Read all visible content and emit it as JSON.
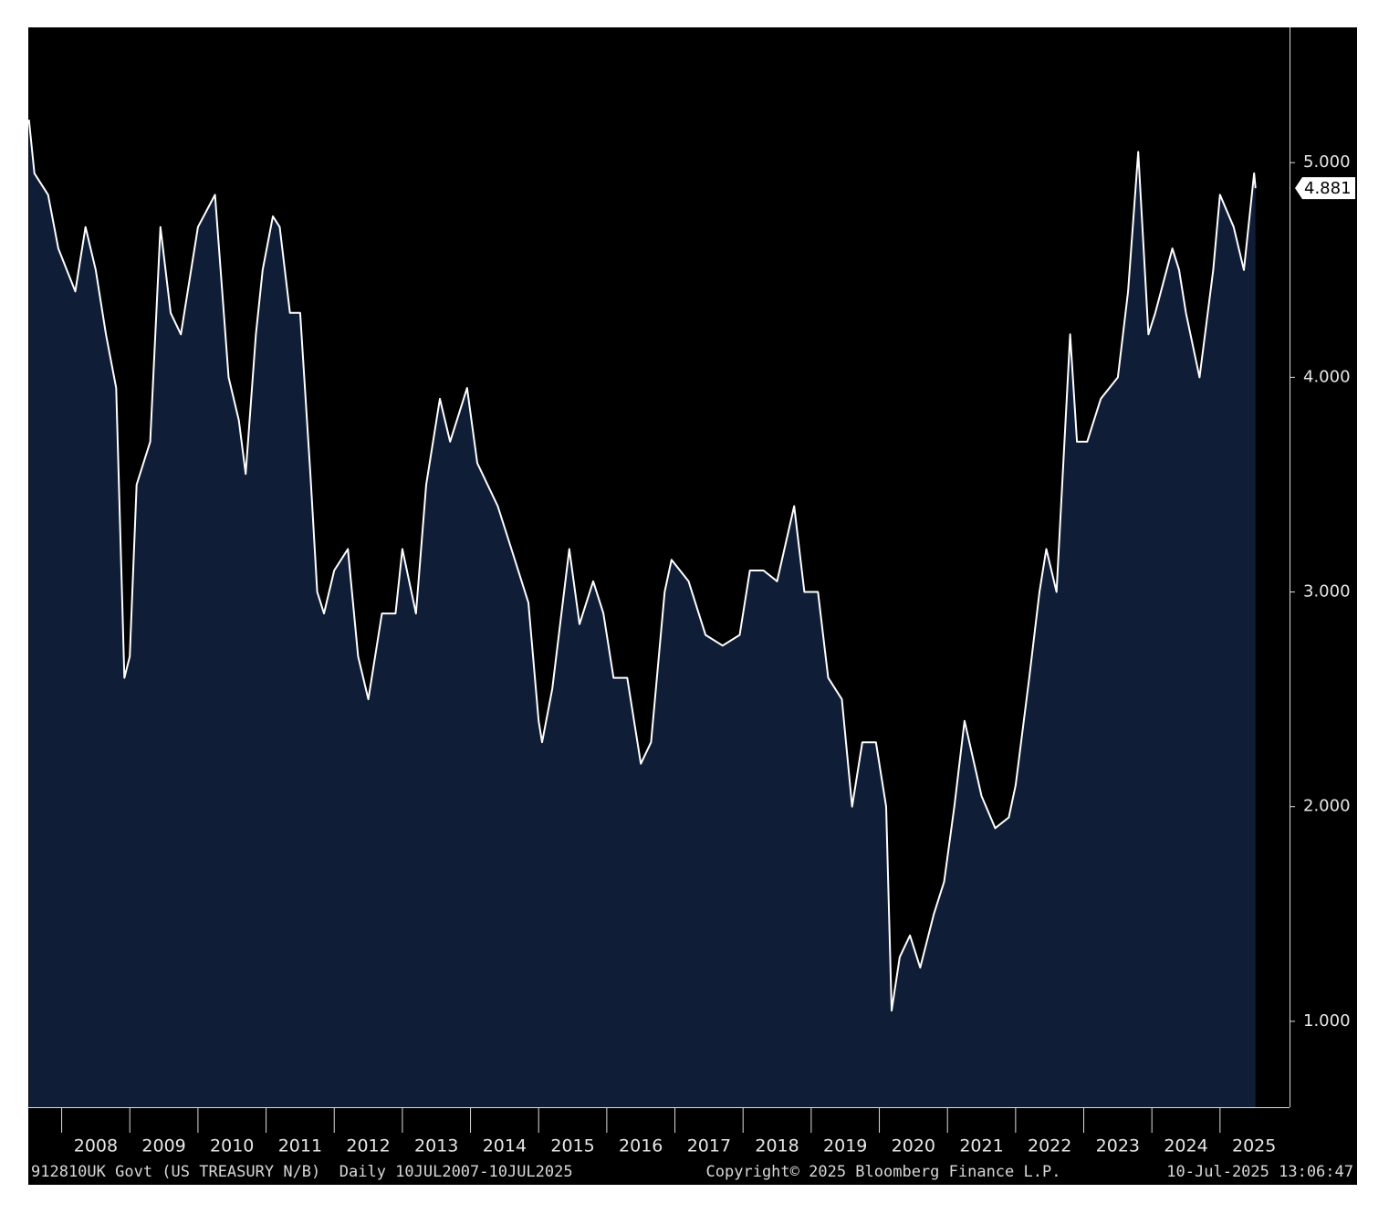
{
  "chart_data": {
    "type": "area",
    "x": [
      2007.52,
      2007.6,
      2007.8,
      2007.95,
      2008.2,
      2008.35,
      2008.5,
      2008.65,
      2008.8,
      2008.92,
      2009.0,
      2009.1,
      2009.3,
      2009.45,
      2009.6,
      2009.75,
      2009.9,
      2010.0,
      2010.25,
      2010.45,
      2010.6,
      2010.7,
      2010.85,
      2010.95,
      2011.1,
      2011.2,
      2011.35,
      2011.5,
      2011.65,
      2011.75,
      2011.85,
      2012.0,
      2012.2,
      2012.35,
      2012.5,
      2012.7,
      2012.9,
      2013.0,
      2013.2,
      2013.35,
      2013.55,
      2013.7,
      2013.95,
      2014.1,
      2014.4,
      2014.6,
      2014.85,
      2015.0,
      2015.05,
      2015.2,
      2015.45,
      2015.6,
      2015.8,
      2015.95,
      2016.1,
      2016.3,
      2016.5,
      2016.65,
      2016.85,
      2016.95,
      2017.2,
      2017.45,
      2017.7,
      2017.95,
      2018.1,
      2018.3,
      2018.5,
      2018.75,
      2018.9,
      2019.1,
      2019.25,
      2019.45,
      2019.6,
      2019.75,
      2019.95,
      2020.1,
      2020.18,
      2020.3,
      2020.45,
      2020.6,
      2020.8,
      2020.95,
      2021.1,
      2021.25,
      2021.5,
      2021.7,
      2021.9,
      2022.0,
      2022.2,
      2022.35,
      2022.45,
      2022.6,
      2022.8,
      2022.9,
      2023.05,
      2023.25,
      2023.5,
      2023.65,
      2023.8,
      2023.95,
      2024.05,
      2024.3,
      2024.4,
      2024.5,
      2024.7,
      2024.9,
      2025.0,
      2025.2,
      2025.35,
      2025.5,
      2025.52
    ],
    "values": [
      5.2,
      4.95,
      4.85,
      4.6,
      4.4,
      4.7,
      4.5,
      4.2,
      3.95,
      2.6,
      2.7,
      3.5,
      3.7,
      4.7,
      4.3,
      4.2,
      4.5,
      4.7,
      4.85,
      4.0,
      3.8,
      3.55,
      4.2,
      4.5,
      4.75,
      4.7,
      4.3,
      4.3,
      3.55,
      3.0,
      2.9,
      3.1,
      3.2,
      2.7,
      2.5,
      2.9,
      2.9,
      3.2,
      2.9,
      3.5,
      3.9,
      3.7,
      3.95,
      3.6,
      3.4,
      3.2,
      2.95,
      2.4,
      2.3,
      2.55,
      3.2,
      2.85,
      3.05,
      2.9,
      2.6,
      2.6,
      2.2,
      2.3,
      3.0,
      3.15,
      3.05,
      2.8,
      2.75,
      2.8,
      3.1,
      3.1,
      3.05,
      3.4,
      3.0,
      3.0,
      2.6,
      2.5,
      2.0,
      2.3,
      2.3,
      2.0,
      1.05,
      1.3,
      1.4,
      1.25,
      1.5,
      1.65,
      2.0,
      2.4,
      2.05,
      1.9,
      1.95,
      2.1,
      2.6,
      3.0,
      3.2,
      3.0,
      4.2,
      3.7,
      3.7,
      3.9,
      4.0,
      4.4,
      5.05,
      4.2,
      4.3,
      4.6,
      4.5,
      4.3,
      4.0,
      4.5,
      4.85,
      4.7,
      4.5,
      4.95,
      4.881
    ],
    "last_value": 4.881,
    "xlim": [
      2007.51,
      2026.02
    ],
    "xticks": [
      2008,
      2009,
      2010,
      2011,
      2012,
      2013,
      2014,
      2015,
      2016,
      2017,
      2018,
      2019,
      2020,
      2021,
      2022,
      2023,
      2024,
      2025
    ],
    "ylim": [
      0.6,
      5.63
    ],
    "yticks": [
      {
        "value": 1,
        "label": "1.000"
      },
      {
        "value": 2,
        "label": "2.000"
      },
      {
        "value": 3,
        "label": "3.000"
      },
      {
        "value": 4,
        "label": "4.000"
      },
      {
        "value": 5,
        "label": "5.000"
      }
    ],
    "color": "#ffffff",
    "fill": "#0f1d37",
    "footer": {
      "left": "912810UK Govt (US TREASURY N/B)  Daily 10JUL2007-10JUL2025",
      "center": "Copyright© 2025 Bloomberg Finance L.P.",
      "right": "10-Jul-2025 13:06:47"
    }
  }
}
